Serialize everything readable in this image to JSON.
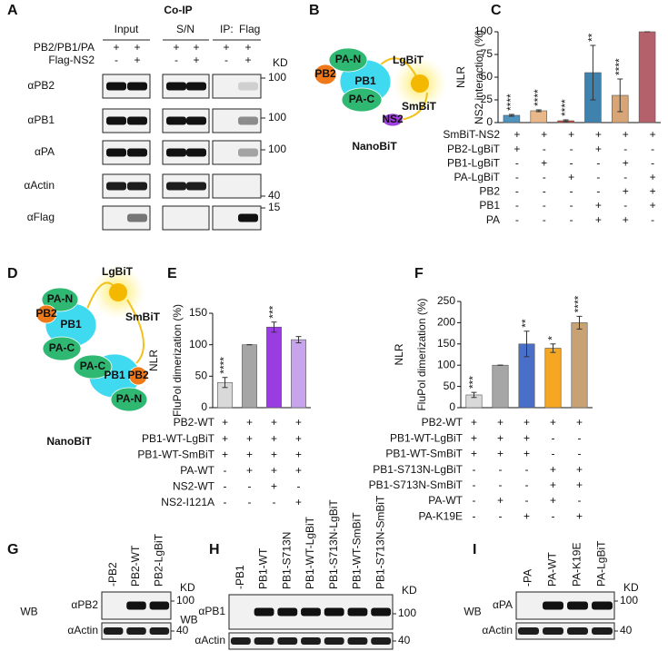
{
  "panels": {
    "A": {
      "letter": "A",
      "title": "Co-IP",
      "groups": [
        "Input",
        "S/N",
        "IP: "
      ],
      "group_highlight": "Flag",
      "rows": [
        "PB2/PB1/PA",
        "Flag-NS2"
      ],
      "signs": [
        [
          "+",
          "+",
          "+",
          "+",
          "+",
          "+"
        ],
        [
          "-",
          "+",
          "-",
          "+",
          "-",
          "+"
        ]
      ],
      "antibodies": [
        "αPB2",
        "αPB1",
        "αPA",
        "αActin",
        "αFlag"
      ],
      "kd_label": "KD",
      "kd": [
        100,
        100,
        100,
        40,
        15
      ]
    },
    "B": {
      "letter": "B",
      "subunits": [
        "PA-N",
        "PB2",
        "PB1",
        "PA-C",
        "NS2"
      ],
      "lgbit": "LgBiT",
      "smbit": "SmBiT",
      "name": "NanoBiT"
    },
    "D": {
      "letter": "D",
      "subunits": [
        "PA-N",
        "PB2",
        "PB1",
        "PA-C",
        "PA-C",
        "PB1",
        "PB2",
        "PA-N"
      ],
      "lgbit": "LgBiT",
      "smbit": "SmBiT",
      "name": "NanoBiT"
    },
    "G": {
      "letter": "G",
      "lanes": [
        "-PB2",
        "PB2-WT",
        "PB2-LgBiT"
      ],
      "antibodies": [
        "αPB2",
        "αActin"
      ],
      "wb": "WB",
      "kd_label": "KD",
      "kd": [
        100,
        40
      ]
    },
    "H": {
      "letter": "H",
      "lanes": [
        "-PB1",
        "PB1-WT",
        "PB1-S713N",
        "PB1-WT-LgBiT",
        "PB1-S713N-LgBiT",
        "PB1-WT-SmBiT",
        "PB1-S713N-SmBiT"
      ],
      "antibodies": [
        "αPB1",
        "αActin"
      ],
      "wb": "WB",
      "kd_label": "KD",
      "kd": [
        100,
        40
      ]
    },
    "I": {
      "letter": "I",
      "lanes": [
        "-PA",
        "PA-WT",
        "PA-K19E",
        "PA-LgBiT"
      ],
      "antibodies": [
        "αPA",
        "αActin"
      ],
      "wb": "WB",
      "kd_label": "KD",
      "kd": [
        100,
        40
      ]
    }
  },
  "chart_data": [
    {
      "type": "bar",
      "letter": "C",
      "axis_title": "NLR",
      "ylabel": "NS2 interaction (%)",
      "values": [
        8,
        13,
        2,
        55,
        30,
        100
      ],
      "errors": [
        1,
        1,
        1,
        30,
        18,
        0
      ],
      "annotations": [
        "****",
        "****",
        "****",
        "**",
        "****",
        null
      ],
      "colors": [
        "#4f93bf",
        "#e8b88a",
        "#c94a3c",
        "#3f82ad",
        "#d8a676",
        "#b5616c"
      ],
      "ylim": [
        0,
        100
      ],
      "yticks": [
        0,
        25,
        50,
        75,
        100
      ],
      "conditions": [
        {
          "label": "SmBiT-NS2",
          "signs": [
            "+",
            "+",
            "+",
            "+",
            "+",
            "+"
          ]
        },
        {
          "label": "PB2-LgBiT",
          "signs": [
            "+",
            "-",
            "-",
            "+",
            "-",
            "-"
          ]
        },
        {
          "label": "PB1-LgBiT",
          "signs": [
            "-",
            "+",
            "-",
            "-",
            "+",
            "-"
          ]
        },
        {
          "label": "PA-LgBiT",
          "signs": [
            "-",
            "-",
            "+",
            "-",
            "-",
            "+"
          ]
        },
        {
          "label": "PB2",
          "signs": [
            "-",
            "-",
            "-",
            "-",
            "+",
            "+"
          ]
        },
        {
          "label": "PB1",
          "signs": [
            "-",
            "-",
            "-",
            "+",
            "-",
            "+"
          ]
        },
        {
          "label": "PA",
          "signs": [
            "-",
            "-",
            "-",
            "+",
            "+",
            "-"
          ]
        }
      ]
    },
    {
      "type": "bar",
      "letter": "E",
      "axis_title": "NLR",
      "ylabel": "FluPol dimerization (%)",
      "values": [
        40,
        100,
        128,
        108
      ],
      "errors": [
        8,
        0,
        8,
        5
      ],
      "annotations": [
        "****",
        null,
        "***",
        null
      ],
      "colors": [
        "#d9d9d9",
        "#a6a6a6",
        "#9a3de0",
        "#c7a4ec"
      ],
      "ylim": [
        0,
        150
      ],
      "yticks": [
        0,
        50,
        100,
        150
      ],
      "conditions": [
        {
          "label": "PB2-WT",
          "signs": [
            "+",
            "+",
            "+",
            "+"
          ]
        },
        {
          "label": "PB1-WT-LgBiT",
          "signs": [
            "+",
            "+",
            "+",
            "+"
          ]
        },
        {
          "label": "PB1-WT-SmBiT",
          "signs": [
            "+",
            "+",
            "+",
            "+"
          ]
        },
        {
          "label": "PA-WT",
          "signs": [
            "-",
            "+",
            "+",
            "+"
          ]
        },
        {
          "label": "NS2-WT",
          "signs": [
            "-",
            "-",
            "+",
            "-"
          ]
        },
        {
          "label": "NS2-I121A",
          "signs": [
            "-",
            "-",
            "-",
            "+"
          ]
        }
      ]
    },
    {
      "type": "bar",
      "letter": "F",
      "axis_title": "NLR",
      "ylabel": "FluPol dimerization (%)",
      "values": [
        30,
        100,
        150,
        140,
        200
      ],
      "errors": [
        6,
        0,
        30,
        10,
        15
      ],
      "annotations": [
        "***",
        null,
        "**",
        "*",
        "****"
      ],
      "colors": [
        "#d9d9d9",
        "#a6a6a6",
        "#4a6fc8",
        "#f5a623",
        "#c9a273"
      ],
      "ylim": [
        0,
        250
      ],
      "yticks": [
        0,
        50,
        100,
        150,
        200,
        250
      ],
      "conditions": [
        {
          "label": "PB2-WT",
          "signs": [
            "+",
            "+",
            "+",
            "+",
            "+"
          ]
        },
        {
          "label": "PB1-WT-LgBiT",
          "signs": [
            "+",
            "+",
            "+",
            "-",
            "-"
          ]
        },
        {
          "label": "PB1-WT-SmBiT",
          "signs": [
            "+",
            "+",
            "+",
            "-",
            "-"
          ]
        },
        {
          "label": "PB1-S713N-LgBiT",
          "signs": [
            "-",
            "-",
            "-",
            "+",
            "+"
          ]
        },
        {
          "label": "PB1-S713N-SmBiT",
          "signs": [
            "-",
            "-",
            "-",
            "+",
            "+"
          ]
        },
        {
          "label": "PA-WT",
          "signs": [
            "-",
            "+",
            "-",
            "+",
            "-"
          ]
        },
        {
          "label": "PA-K19E",
          "signs": [
            "-",
            "-",
            "+",
            "-",
            "+"
          ]
        }
      ]
    }
  ]
}
